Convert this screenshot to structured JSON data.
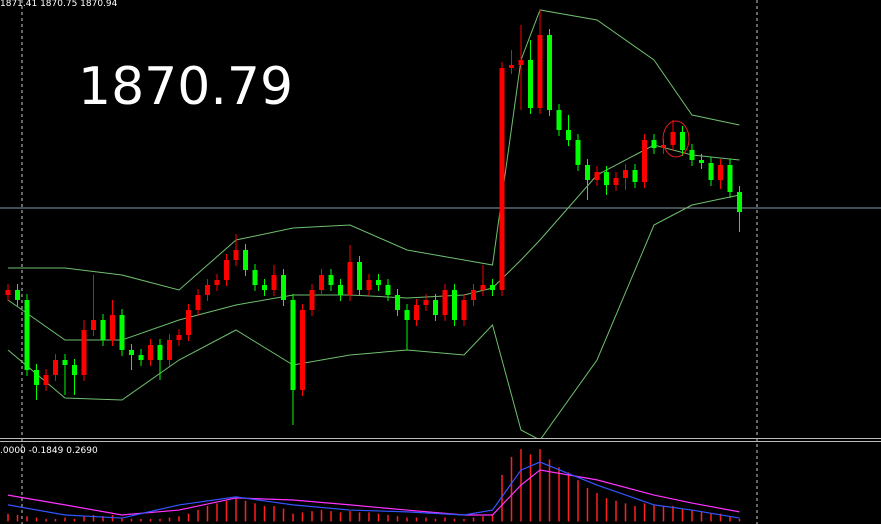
{
  "chart_data": [
    {
      "type": "candlestick",
      "header": "1871.41 1870.75 1870.94",
      "price_line": {
        "value": 1870.79,
        "label": "1870.79"
      },
      "ylim": [
        1859.29,
        1881.19
      ],
      "up_color": "#ff0000",
      "down_color": "#00ff00",
      "open": [
        1866.44,
        1866.69,
        1866.19,
        1862.69,
        1861.94,
        1862.44,
        1863.19,
        1862.94,
        1862.44,
        1864.69,
        1865.19,
        1864.19,
        1865.44,
        1863.69,
        1863.44,
        1863.19,
        1863.94,
        1863.19,
        1864.19,
        1864.44,
        1865.69,
        1866.44,
        1866.94,
        1867.19,
        1868.19,
        1868.69,
        1867.69,
        1866.94,
        1866.69,
        1867.44,
        1866.19,
        1861.69,
        1865.69,
        1866.69,
        1867.44,
        1866.94,
        1866.44,
        1868.09,
        1866.69,
        1867.19,
        1866.94,
        1866.44,
        1865.69,
        1865.19,
        1865.94,
        1866.19,
        1865.44,
        1866.69,
        1865.19,
        1866.19,
        1866.69,
        1866.94,
        1866.69,
        1877.79,
        1877.94,
        1878.19,
        1875.79,
        1879.44,
        1875.69,
        1874.69,
        1874.19,
        1872.94,
        1872.19,
        1872.59,
        1871.94,
        1872.29,
        1872.69,
        1872.09,
        1874.19,
        1873.79,
        1873.94,
        1874.59,
        1873.69,
        1873.19,
        1873.04,
        1872.19,
        1872.94,
        1871.59
      ],
      "high": [
        1866.99,
        1866.99,
        1866.49,
        1862.99,
        1862.74,
        1863.49,
        1863.49,
        1863.24,
        1865.19,
        1867.44,
        1865.49,
        1866.19,
        1865.74,
        1863.99,
        1863.74,
        1864.24,
        1864.24,
        1864.49,
        1864.74,
        1865.99,
        1866.74,
        1867.24,
        1867.49,
        1868.49,
        1869.49,
        1868.99,
        1867.99,
        1867.24,
        1867.94,
        1867.74,
        1866.49,
        1865.99,
        1866.99,
        1867.74,
        1867.74,
        1867.24,
        1868.94,
        1868.39,
        1867.49,
        1867.49,
        1867.24,
        1866.74,
        1865.99,
        1866.24,
        1866.49,
        1866.49,
        1866.99,
        1866.99,
        1866.49,
        1866.99,
        1867.94,
        1867.24,
        1878.09,
        1878.69,
        1879.94,
        1879.19,
        1880.69,
        1879.74,
        1875.99,
        1875.44,
        1874.49,
        1873.24,
        1872.89,
        1872.89,
        1872.59,
        1872.99,
        1872.99,
        1874.49,
        1874.49,
        1874.24,
        1875.19,
        1874.89,
        1873.99,
        1873.49,
        1873.34,
        1873.24,
        1873.24,
        1871.89
      ],
      "low": [
        1866.14,
        1865.89,
        1862.39,
        1861.19,
        1861.64,
        1862.14,
        1861.44,
        1861.44,
        1862.14,
        1864.39,
        1863.89,
        1863.89,
        1863.39,
        1862.69,
        1862.89,
        1862.89,
        1862.19,
        1862.89,
        1863.89,
        1864.14,
        1865.39,
        1866.14,
        1866.64,
        1866.89,
        1867.89,
        1867.39,
        1866.64,
        1866.39,
        1866.39,
        1865.89,
        1859.94,
        1861.39,
        1865.39,
        1866.39,
        1866.64,
        1866.14,
        1866.14,
        1866.39,
        1866.39,
        1866.64,
        1866.14,
        1865.39,
        1863.69,
        1864.89,
        1865.64,
        1865.14,
        1865.14,
        1864.89,
        1864.89,
        1865.89,
        1866.39,
        1866.39,
        1866.39,
        1877.49,
        1875.69,
        1875.49,
        1875.49,
        1875.39,
        1874.39,
        1873.89,
        1872.64,
        1871.19,
        1871.89,
        1871.44,
        1871.64,
        1871.69,
        1871.79,
        1871.79,
        1873.49,
        1873.49,
        1873.64,
        1873.39,
        1872.89,
        1872.74,
        1871.89,
        1871.74,
        1871.29,
        1869.59
      ],
      "close": [
        1866.69,
        1866.19,
        1862.69,
        1861.94,
        1862.44,
        1863.19,
        1862.94,
        1862.44,
        1864.69,
        1865.19,
        1864.19,
        1865.44,
        1863.69,
        1863.44,
        1863.19,
        1863.94,
        1863.19,
        1864.19,
        1864.44,
        1865.69,
        1866.44,
        1866.94,
        1867.19,
        1868.19,
        1868.69,
        1867.69,
        1866.94,
        1866.69,
        1867.44,
        1866.19,
        1861.69,
        1865.69,
        1866.69,
        1867.44,
        1866.94,
        1866.44,
        1868.09,
        1866.69,
        1867.19,
        1866.94,
        1866.44,
        1865.69,
        1865.19,
        1865.94,
        1866.19,
        1865.44,
        1866.69,
        1865.19,
        1866.19,
        1866.69,
        1866.94,
        1866.69,
        1877.79,
        1877.94,
        1878.19,
        1875.79,
        1879.44,
        1875.69,
        1874.69,
        1874.19,
        1872.94,
        1872.19,
        1872.59,
        1871.94,
        1872.29,
        1872.69,
        1872.09,
        1874.19,
        1873.79,
        1873.94,
        1874.59,
        1873.69,
        1873.19,
        1873.04,
        1872.19,
        1872.94,
        1871.59,
        1870.59
      ],
      "band_x": [
        0,
        6,
        12,
        18,
        24,
        30,
        36,
        42,
        48,
        51,
        54,
        56,
        62,
        68,
        72,
        77
      ],
      "bands": [
        {
          "color": "#6fbf6f",
          "values": [
            1867.79,
            1867.79,
            1867.44,
            1866.69,
            1869.19,
            1869.79,
            1869.94,
            1868.69,
            1868.19,
            1867.94,
            1878.19,
            1880.69,
            1880.19,
            1878.19,
            1875.44,
            1874.94
          ]
        },
        {
          "color": "#6fbf6f",
          "values": [
            1866.19,
            1864.19,
            1864.19,
            1865.19,
            1865.94,
            1866.44,
            1866.44,
            1866.29,
            1866.44,
            1866.79,
            1868.19,
            1869.19,
            1872.44,
            1873.94,
            1873.44,
            1873.19
          ]
        },
        {
          "color": "#6fbf6f",
          "values": [
            1863.69,
            1861.29,
            1861.19,
            1863.19,
            1864.69,
            1862.94,
            1863.44,
            1863.69,
            1863.44,
            1864.94,
            1859.69,
            1859.19,
            1863.19,
            1869.94,
            1870.94,
            1871.44
          ]
        }
      ]
    },
    {
      "type": "bar",
      "header": ".0000 -0.1849 0.2690",
      "ylim": [
        -0.1,
        3.0
      ],
      "color": "#ff2020",
      "values": [
        0.3,
        0.25,
        0.2,
        0.15,
        0.1,
        0.1,
        0.15,
        0.1,
        0.2,
        0.25,
        0.2,
        0.25,
        0.15,
        0.1,
        0.1,
        0.1,
        0.1,
        0.15,
        0.2,
        0.3,
        0.45,
        0.6,
        0.7,
        0.8,
        0.9,
        0.8,
        0.7,
        0.6,
        0.6,
        0.5,
        0.3,
        0.35,
        0.4,
        0.45,
        0.4,
        0.35,
        0.4,
        0.35,
        0.35,
        0.3,
        0.25,
        0.2,
        0.15,
        0.15,
        0.15,
        0.1,
        0.15,
        0.1,
        0.1,
        0.15,
        0.2,
        0.25,
        1.8,
        2.5,
        2.8,
        2.6,
        2.8,
        2.4,
        2.1,
        1.9,
        1.6,
        1.3,
        1.1,
        0.9,
        0.8,
        0.7,
        0.6,
        0.7,
        0.65,
        0.6,
        0.6,
        0.5,
        0.45,
        0.4,
        0.3,
        0.3,
        0.2,
        0.1
      ],
      "line_x": [
        0,
        6,
        12,
        18,
        24,
        30,
        36,
        42,
        48,
        51,
        54,
        56,
        62,
        68,
        72,
        77
      ],
      "lines": [
        {
          "color": "#ff33ff",
          "values": [
            1.02,
            0.64,
            0.25,
            0.44,
            0.91,
            0.83,
            0.64,
            0.44,
            0.25,
            0.25,
            1.41,
            1.99,
            1.61,
            1.02,
            0.71,
            0.37
          ]
        },
        {
          "color": "#3355ff",
          "values": [
            0.64,
            0.25,
            0.13,
            0.64,
            0.95,
            0.64,
            0.44,
            0.37,
            0.25,
            0.44,
            1.99,
            2.3,
            1.41,
            0.64,
            0.44,
            0.13
          ]
        }
      ]
    }
  ]
}
